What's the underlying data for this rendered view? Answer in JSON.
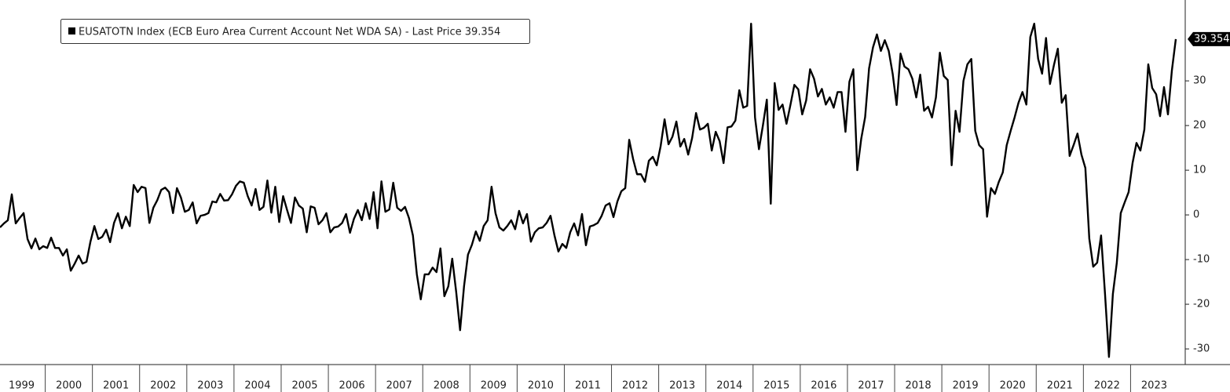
{
  "chart_data": {
    "type": "line",
    "categories": [
      null,
      null,
      null,
      null,
      null,
      "1999",
      null,
      null,
      null,
      null,
      null,
      null,
      null,
      null,
      null,
      null,
      null,
      "2000",
      null,
      null,
      null,
      null,
      null,
      null,
      null,
      null,
      null,
      null,
      null,
      "2001",
      null,
      null,
      null,
      null,
      null,
      null,
      null,
      null,
      null,
      null,
      null,
      "2002",
      null,
      null,
      null,
      null,
      null,
      null,
      null,
      null,
      null,
      null,
      null,
      "2003",
      null,
      null,
      null,
      null,
      null,
      null,
      null,
      null,
      null,
      null,
      null,
      "2004",
      null,
      null,
      null,
      null,
      null,
      null,
      null,
      null,
      null,
      null,
      null,
      "2005",
      null,
      null,
      null,
      null,
      null,
      null,
      null,
      null,
      null,
      null,
      null,
      "2006",
      null,
      null,
      null,
      null,
      null,
      null,
      null,
      null,
      null,
      null,
      null,
      "2007",
      null,
      null,
      null,
      null,
      null,
      null,
      null,
      null,
      null,
      null,
      null,
      "2008",
      null,
      null,
      null,
      null,
      null,
      null,
      null,
      null,
      null,
      null,
      null,
      "2009",
      null,
      null,
      null,
      null,
      null,
      null,
      null,
      null,
      null,
      null,
      null,
      "2010",
      null,
      null,
      null,
      null,
      null,
      null,
      null,
      null,
      null,
      null,
      null,
      "2011",
      null,
      null,
      null,
      null,
      null,
      null,
      null,
      null,
      null,
      null,
      null,
      "2012",
      null,
      null,
      null,
      null,
      null,
      null,
      null,
      null,
      null,
      null,
      null,
      "2013",
      null,
      null,
      null,
      null,
      null,
      null,
      null,
      null,
      null,
      null,
      null,
      "2014",
      null,
      null,
      null,
      null,
      null,
      null,
      null,
      null,
      null,
      null,
      null,
      "2015",
      null,
      null,
      null,
      null,
      null,
      null,
      null,
      null,
      null,
      null,
      null,
      "2016",
      null,
      null,
      null,
      null,
      null,
      null,
      null,
      null,
      null,
      null,
      null,
      "2017",
      null,
      null,
      null,
      null,
      null,
      null,
      null,
      null,
      null,
      null,
      null,
      "2018",
      null,
      null,
      null,
      null,
      null,
      null,
      null,
      null,
      null,
      null,
      null,
      "2019",
      null,
      null,
      null,
      null,
      null,
      null,
      null,
      null,
      null,
      null,
      null,
      "2020",
      null,
      null,
      null,
      null,
      null,
      null,
      null,
      null,
      null,
      null,
      null,
      "2021",
      null,
      null,
      null,
      null,
      null,
      null,
      null,
      null,
      null,
      null,
      null,
      "2022",
      null,
      null,
      null,
      null,
      null,
      null,
      null,
      null,
      null,
      null,
      null,
      "2023",
      null,
      null,
      null,
      null,
      null,
      null
    ],
    "series": [
      {
        "name": "EUSATOTN Index (ECB Euro Area Current Account Net WDA SA)",
        "color": "#000000",
        "values": [
          -2.8,
          -1.9,
          -1.2,
          4.6,
          -1.9,
          -0.7,
          0.4,
          -5.4,
          -7.5,
          -5.3,
          -7.7,
          -7.0,
          -7.4,
          -5.1,
          -7.4,
          -7.4,
          -9.1,
          -7.7,
          -12.5,
          -10.9,
          -9.1,
          -10.9,
          -10.5,
          -6.0,
          -2.5,
          -5.4,
          -4.9,
          -3.3,
          -6.1,
          -1.8,
          0.4,
          -3.0,
          -0.4,
          -2.5,
          6.7,
          5.1,
          6.3,
          6.0,
          -1.8,
          1.6,
          3.3,
          5.6,
          6.1,
          5.1,
          0.4,
          6.0,
          3.9,
          0.7,
          1.1,
          2.8,
          -1.9,
          -0.2,
          0,
          0.4,
          3.0,
          2.8,
          4.7,
          3.2,
          3.3,
          4.6,
          6.5,
          7.5,
          7.2,
          4.2,
          2.1,
          5.8,
          1.1,
          1.8,
          7.7,
          0.5,
          6.3,
          -1.6,
          4.2,
          1.1,
          -1.8,
          3.9,
          2.1,
          1.4,
          -3.9,
          1.9,
          1.6,
          -2.1,
          -1.2,
          0.4,
          -3.9,
          -2.8,
          -2.6,
          -1.8,
          0.2,
          -4.0,
          -0.9,
          1.1,
          -1.2,
          2.6,
          -0.9,
          5.1,
          -3.0,
          7.5,
          0.7,
          1.2,
          7.2,
          1.6,
          0.9,
          1.8,
          -0.7,
          -4.6,
          -13.3,
          -18.9,
          -13.3,
          -13.3,
          -11.8,
          -12.8,
          -7.5,
          -18.2,
          -16.0,
          -9.8,
          -17.2,
          -25.8,
          -16.0,
          -8.9,
          -6.7,
          -3.7,
          -5.8,
          -2.5,
          -1.2,
          6.3,
          0.4,
          -2.8,
          -3.5,
          -2.5,
          -1.2,
          -3.2,
          0.9,
          -1.9,
          0.2,
          -6.0,
          -3.9,
          -3.0,
          -2.8,
          -1.8,
          -0.2,
          -4.6,
          -8.2,
          -6.5,
          -7.4,
          -3.9,
          -1.9,
          -4.6,
          0.2,
          -6.8,
          -2.6,
          -2.3,
          -1.8,
          -0.2,
          2.1,
          2.6,
          -0.5,
          3.0,
          5.3,
          6.0,
          16.8,
          12.5,
          9.1,
          9.1,
          7.4,
          12.1,
          13.0,
          11.1,
          15.4,
          21.4,
          15.8,
          17.5,
          20.9,
          15.3,
          17.0,
          13.5,
          17.2,
          22.8,
          19.1,
          19.5,
          20.4,
          14.4,
          18.6,
          16.5,
          11.6,
          19.6,
          19.8,
          21.1,
          27.9,
          24.0,
          24.4,
          42.8,
          21.8,
          14.7,
          20.0,
          25.8,
          2.5,
          29.5,
          23.5,
          24.7,
          20.4,
          24.6,
          29.1,
          28.1,
          22.5,
          25.6,
          32.6,
          30.5,
          26.5,
          28.2,
          24.7,
          26.3,
          24.0,
          27.5,
          27.5,
          18.6,
          29.8,
          32.6,
          10.0,
          17.0,
          21.9,
          32.8,
          37.5,
          40.4,
          36.7,
          39.1,
          36.7,
          31.6,
          24.6,
          36.1,
          33.2,
          32.6,
          30.5,
          26.3,
          31.4,
          23.3,
          24.2,
          21.8,
          26.3,
          36.3,
          31.1,
          30.2,
          11.1,
          23.3,
          18.6,
          30.0,
          33.7,
          34.9,
          18.8,
          15.6,
          14.7,
          -0.4,
          6.0,
          4.7,
          7.4,
          9.5,
          15.6,
          18.8,
          21.8,
          25.1,
          27.5,
          24.7,
          39.8,
          42.8,
          34.9,
          31.6,
          39.6,
          29.3,
          33.5,
          37.2,
          25.1,
          26.8,
          13.2,
          15.6,
          18.2,
          13.5,
          10.5,
          -5.3,
          -11.6,
          -10.7,
          -4.6,
          -17.7,
          -31.8,
          -17.7,
          -10.7,
          0.4,
          2.8,
          5.1,
          11.6,
          16.1,
          14.4,
          19.1,
          33.7,
          28.4,
          27.0,
          22.1,
          28.6,
          22.5,
          32.3,
          39.354
        ]
      }
    ],
    "legend_suffix": "- Last Price",
    "ylim": [
      -33.5,
      48.1
    ],
    "yticks": [
      -30,
      -20,
      -10,
      0,
      10,
      20,
      30
    ],
    "legend": "top-left"
  }
}
